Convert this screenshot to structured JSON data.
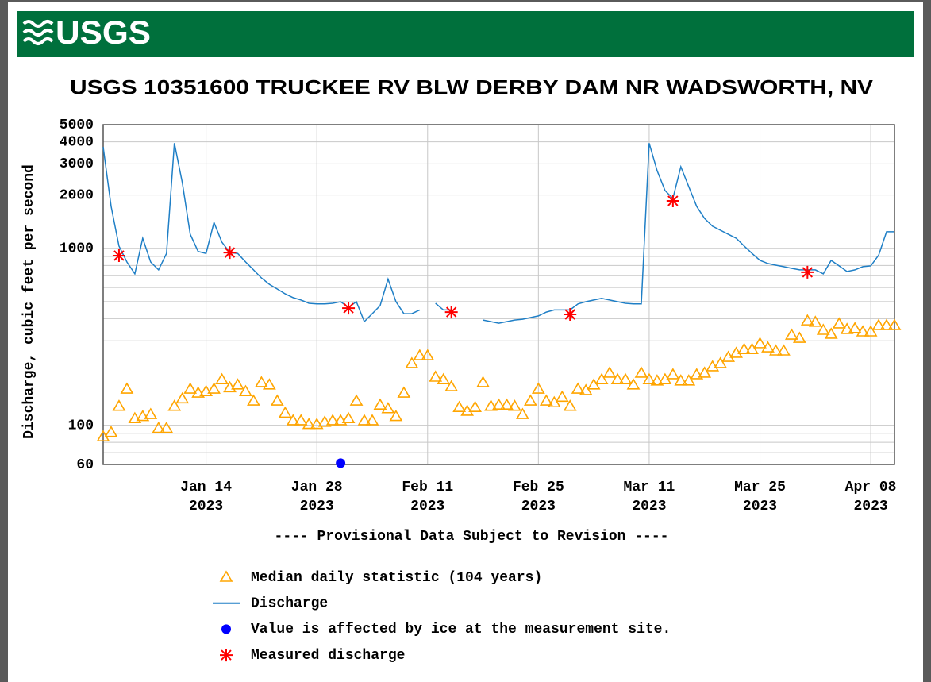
{
  "chart_data": {
    "type": "line",
    "logo": "USGS",
    "title": "USGS 10351600 TRUCKEE RV BLW DERBY DAM NR WADSWORTH, NV",
    "y_label": "Discharge, cubic feet per second",
    "annotation": "---- Provisional Data Subject to Revision ----",
    "annotation_color": "#ff0000",
    "log_y": true,
    "grid": true,
    "xlim": [
      "2023-01-01",
      "2023-04-11"
    ],
    "xticks": [
      {
        "value": "2023-01-14",
        "label": "Jan 14",
        "year": "2023"
      },
      {
        "value": "2023-01-28",
        "label": "Jan 28",
        "year": "2023"
      },
      {
        "value": "2023-02-11",
        "label": "Feb 11",
        "year": "2023"
      },
      {
        "value": "2023-02-25",
        "label": "Feb 25",
        "year": "2023"
      },
      {
        "value": "2023-03-11",
        "label": "Mar 11",
        "year": "2023"
      },
      {
        "value": "2023-03-25",
        "label": "Mar 25",
        "year": "2023"
      },
      {
        "value": "2023-04-08",
        "label": "Apr 08",
        "year": "2023"
      }
    ],
    "ylim": [
      60,
      5000
    ],
    "yticks": [
      60,
      100,
      1000,
      2000,
      3000,
      4000,
      5000
    ],
    "y_minor_ticks": [
      70,
      80,
      90,
      200,
      300,
      400,
      500,
      600,
      700,
      800,
      900
    ],
    "x": [
      "2023-01-01",
      "2023-01-02",
      "2023-01-03",
      "2023-01-04",
      "2023-01-05",
      "2023-01-06",
      "2023-01-07",
      "2023-01-08",
      "2023-01-09",
      "2023-01-10",
      "2023-01-11",
      "2023-01-12",
      "2023-01-13",
      "2023-01-14",
      "2023-01-15",
      "2023-01-16",
      "2023-01-17",
      "2023-01-18",
      "2023-01-19",
      "2023-01-20",
      "2023-01-21",
      "2023-01-22",
      "2023-01-23",
      "2023-01-24",
      "2023-01-25",
      "2023-01-26",
      "2023-01-27",
      "2023-01-28",
      "2023-01-29",
      "2023-01-30",
      "2023-01-31",
      "2023-02-01",
      "2023-02-02",
      "2023-02-03",
      "2023-02-04",
      "2023-02-05",
      "2023-02-06",
      "2023-02-07",
      "2023-02-08",
      "2023-02-09",
      "2023-02-10",
      "2023-02-11",
      "2023-02-12",
      "2023-02-13",
      "2023-02-14",
      "2023-02-15",
      "2023-02-16",
      "2023-02-17",
      "2023-02-18",
      "2023-02-19",
      "2023-02-20",
      "2023-02-21",
      "2023-02-22",
      "2023-02-23",
      "2023-02-24",
      "2023-02-25",
      "2023-02-26",
      "2023-02-27",
      "2023-02-28",
      "2023-03-01",
      "2023-03-02",
      "2023-03-03",
      "2023-03-04",
      "2023-03-05",
      "2023-03-06",
      "2023-03-07",
      "2023-03-08",
      "2023-03-09",
      "2023-03-10",
      "2023-03-11",
      "2023-03-12",
      "2023-03-13",
      "2023-03-14",
      "2023-03-15",
      "2023-03-16",
      "2023-03-17",
      "2023-03-18",
      "2023-03-19",
      "2023-03-20",
      "2023-03-21",
      "2023-03-22",
      "2023-03-23",
      "2023-03-24",
      "2023-03-25",
      "2023-03-26",
      "2023-03-27",
      "2023-03-28",
      "2023-03-29",
      "2023-03-30",
      "2023-03-31",
      "2023-04-01",
      "2023-04-02",
      "2023-04-03",
      "2023-04-04",
      "2023-04-05",
      "2023-04-06",
      "2023-04-07",
      "2023-04-08",
      "2023-04-09",
      "2023-04-10",
      "2023-04-11"
    ],
    "series": [
      {
        "name": "Median daily statistic (104 years)",
        "type": "scatter",
        "marker": "triangle",
        "color": "#ffa500",
        "values": [
          86,
          91,
          128,
          160,
          109,
          112,
          115,
          96,
          96,
          128,
          141,
          160,
          152,
          155,
          160,
          181,
          163,
          169,
          155,
          137,
          174,
          169,
          137,
          117,
          106,
          106,
          101,
          101,
          104,
          106,
          106,
          109,
          137,
          106,
          106,
          130,
          124,
          112,
          152,
          223,
          247,
          247,
          187,
          181,
          165,
          126,
          120,
          126,
          174,
          128,
          130,
          130,
          128,
          115,
          137,
          160,
          137,
          134,
          144,
          128,
          160,
          157,
          169,
          181,
          197,
          181,
          181,
          169,
          197,
          181,
          178,
          181,
          193,
          178,
          178,
          193,
          197,
          214,
          223,
          242,
          255,
          268,
          268,
          289,
          274,
          263,
          263,
          323,
          310,
          389,
          382,
          344,
          327,
          374,
          348,
          352,
          337,
          337,
          366,
          366,
          366
        ]
      },
      {
        "name": "Discharge",
        "type": "line",
        "color": "#1f7fc6",
        "values": [
          3740,
          1725,
          1030,
          837,
          717,
          1140,
          837,
          755,
          935,
          3930,
          2350,
          1200,
          960,
          935,
          1400,
          1085,
          947,
          935,
          837,
          755,
          680,
          626,
          589,
          553,
          526,
          510,
          489,
          485,
          485,
          489,
          499,
          464,
          499,
          385,
          427,
          474,
          670,
          499,
          427,
          427,
          448,
          null,
          489,
          448,
          448,
          null,
          null,
          null,
          393,
          385,
          377,
          385,
          393,
          397,
          406,
          415,
          436,
          448,
          448,
          448,
          485,
          499,
          510,
          521,
          510,
          499,
          489,
          485,
          485,
          3930,
          2750,
          2120,
          1915,
          2890,
          2230,
          1725,
          1476,
          1333,
          1265,
          1200,
          1140,
          1030,
          935,
          854,
          820,
          803,
          787,
          770,
          755,
          755,
          755,
          717,
          854,
          795,
          739,
          755,
          787,
          795,
          915,
          1240,
          1240
        ]
      },
      {
        "name": "Value is affected by ice at the measurement site.",
        "type": "scatter",
        "marker": "circle",
        "color": "#0000ff",
        "x": [
          "2023-01-31"
        ],
        "values": [
          61
        ]
      },
      {
        "name": "Measured discharge",
        "type": "scatter",
        "marker": "asterisk",
        "color": "#ff0000",
        "x": [
          "2023-01-03",
          "2023-01-17",
          "2023-02-01",
          "2023-02-14",
          "2023-03-01",
          "2023-03-14",
          "2023-03-31"
        ],
        "values": [
          909,
          946,
          459,
          436,
          423,
          1855,
          732
        ]
      }
    ]
  }
}
